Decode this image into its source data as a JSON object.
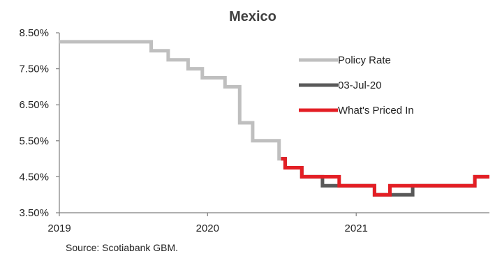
{
  "chart_data": {
    "type": "line",
    "title": "Mexico",
    "xlabel": "",
    "ylabel": "",
    "source": "Source: Scotiabank GBM.",
    "x_ticks": [
      "2019",
      "2020",
      "2021"
    ],
    "y_ticks": [
      "3.50%",
      "4.50%",
      "5.50%",
      "6.50%",
      "7.50%",
      "8.50%"
    ],
    "ylim": [
      3.5,
      8.5
    ],
    "xlim": [
      "2019-01-01",
      "2021-11-25"
    ],
    "step": true,
    "grid": false,
    "legend_position": "right",
    "series": [
      {
        "name": "Policy Rate",
        "color": "#bfbfbf",
        "points": [
          [
            "2019-01-01",
            8.25
          ],
          [
            "2019-08-15",
            8.0
          ],
          [
            "2019-09-26",
            7.75
          ],
          [
            "2019-11-14",
            7.5
          ],
          [
            "2019-12-19",
            7.25
          ],
          [
            "2020-02-13",
            7.0
          ],
          [
            "2020-03-20",
            6.5
          ],
          [
            "2020-03-20",
            6.0
          ],
          [
            "2020-04-21",
            5.5
          ],
          [
            "2020-05-14",
            5.5
          ],
          [
            "2020-06-25",
            5.0
          ],
          [
            "2020-06-30",
            5.0
          ]
        ]
      },
      {
        "name": "03-Jul-20",
        "color": "#595959",
        "points": [
          [
            "2020-06-30",
            5.0
          ],
          [
            "2020-07-10",
            4.75
          ],
          [
            "2020-08-20",
            4.5
          ],
          [
            "2020-10-10",
            4.25
          ],
          [
            "2021-02-15",
            4.0
          ],
          [
            "2021-05-20",
            4.25
          ],
          [
            "2021-10-20",
            4.5
          ],
          [
            "2021-11-25",
            4.5
          ]
        ]
      },
      {
        "name": "What's Priced In",
        "color": "#e31e24",
        "points": [
          [
            "2020-06-30",
            5.0
          ],
          [
            "2020-07-10",
            4.75
          ],
          [
            "2020-08-20",
            4.5
          ],
          [
            "2020-11-20",
            4.25
          ],
          [
            "2021-02-15",
            4.0
          ],
          [
            "2021-03-25",
            4.25
          ],
          [
            "2021-10-20",
            4.5
          ],
          [
            "2021-11-25",
            4.5
          ]
        ]
      }
    ]
  },
  "colors": {
    "axis": "#7f7f7f",
    "text": "#222222",
    "title": "#404040"
  }
}
